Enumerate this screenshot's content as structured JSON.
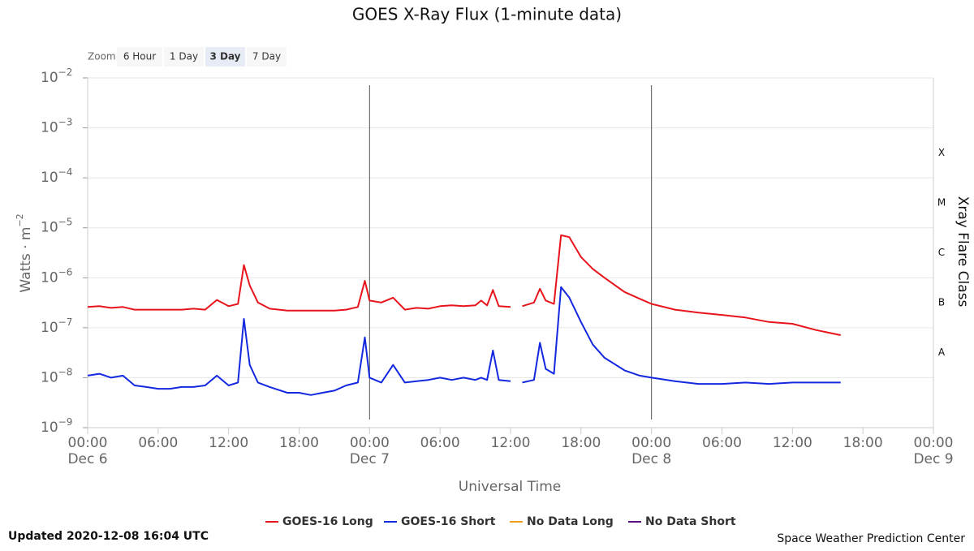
{
  "chart_data": {
    "type": "line",
    "title": "GOES X-Ray Flux (1-minute data)",
    "zoom": {
      "label": "Zoom",
      "buttons": [
        "6 Hour",
        "1 Day",
        "3 Day",
        "7 Day"
      ],
      "selected": "3 Day"
    },
    "xlabel": "Universal Time",
    "ylabel": "Watts · m",
    "ylabel_exponent": "−2",
    "y2label": "Xray Flare Class",
    "log_y": true,
    "grid": true,
    "xlim": [
      0,
      72
    ],
    "xticks": [
      {
        "value": 0,
        "label": "00:00",
        "date": "Dec 6"
      },
      {
        "value": 6,
        "label": "06:00"
      },
      {
        "value": 12,
        "label": "12:00"
      },
      {
        "value": 18,
        "label": "18:00"
      },
      {
        "value": 24,
        "label": "00:00",
        "date": "Dec 7"
      },
      {
        "value": 30,
        "label": "06:00"
      },
      {
        "value": 36,
        "label": "12:00"
      },
      {
        "value": 42,
        "label": "18:00"
      },
      {
        "value": 48,
        "label": "00:00",
        "date": "Dec 8"
      },
      {
        "value": 54,
        "label": "06:00"
      },
      {
        "value": 60,
        "label": "12:00"
      },
      {
        "value": 66,
        "label": "18:00"
      },
      {
        "value": 72,
        "label": "00:00",
        "date": "Dec 9"
      }
    ],
    "ylim": [
      1e-09,
      0.01
    ],
    "yticks": [
      {
        "value": 1e-09,
        "label": "10",
        "exponent": "−9"
      },
      {
        "value": 1e-08,
        "label": "10",
        "exponent": "−8"
      },
      {
        "value": 1e-07,
        "label": "10",
        "exponent": "−7"
      },
      {
        "value": 1e-06,
        "label": "10",
        "exponent": "−6"
      },
      {
        "value": 1e-05,
        "label": "10",
        "exponent": "−5"
      },
      {
        "value": 0.0001,
        "label": "10",
        "exponent": "−4"
      },
      {
        "value": 0.001,
        "label": "10",
        "exponent": "−3"
      },
      {
        "value": 0.01,
        "label": "10",
        "exponent": "−2"
      }
    ],
    "flare_classes": [
      {
        "label": "A",
        "range": [
          1e-08,
          1e-07
        ]
      },
      {
        "label": "B",
        "range": [
          1e-07,
          1e-06
        ]
      },
      {
        "label": "C",
        "range": [
          1e-06,
          1e-05
        ]
      },
      {
        "label": "M",
        "range": [
          1e-05,
          0.0001
        ]
      },
      {
        "label": "X",
        "range": [
          0.0001,
          0.001
        ]
      }
    ],
    "plot_lines": [
      24,
      48
    ],
    "x": [
      0,
      1,
      2,
      3,
      4,
      5,
      6,
      7,
      8,
      9,
      10,
      11,
      12,
      12.8,
      13.3,
      13.8,
      14.5,
      15.5,
      17,
      18,
      19,
      20,
      21,
      22,
      23,
      23.6,
      24,
      25,
      26,
      27,
      28,
      29,
      30,
      31,
      32,
      33,
      33.5,
      34,
      34.5,
      35,
      36,
      36.5,
      37,
      38,
      38.5,
      39,
      39.7,
      40.3,
      41,
      42,
      43,
      44,
      45.7,
      47,
      48,
      50,
      52,
      54,
      56,
      58,
      60,
      62,
      64.1
    ],
    "series": [
      {
        "name": "GOES-16 Long",
        "color": "#e8141c",
        "values": [
          2.6e-07,
          2.7e-07,
          2.5e-07,
          2.6e-07,
          2.3e-07,
          2.3e-07,
          2.3e-07,
          2.3e-07,
          2.3e-07,
          2.4e-07,
          2.3e-07,
          3.6e-07,
          2.7e-07,
          3e-07,
          1.8e-06,
          7e-07,
          3.2e-07,
          2.4e-07,
          2.2e-07,
          2.2e-07,
          2.2e-07,
          2.2e-07,
          2.2e-07,
          2.3e-07,
          2.6e-07,
          8.7e-07,
          3.5e-07,
          3.2e-07,
          4e-07,
          2.3e-07,
          2.5e-07,
          2.4e-07,
          2.7e-07,
          2.8e-07,
          2.7e-07,
          2.8e-07,
          3.5e-07,
          2.8e-07,
          5.7e-07,
          2.7e-07,
          2.6e-07,
          null,
          2.7e-07,
          3.2e-07,
          6e-07,
          3.5e-07,
          3e-07,
          7.1e-06,
          6.5e-06,
          2.6e-06,
          1.5e-06,
          1e-06,
          5.2e-07,
          3.8e-07,
          3e-07,
          2.3e-07,
          2e-07,
          1.8e-07,
          1.6e-07,
          1.3e-07,
          1.2e-07,
          9e-08,
          7.1e-08
        ]
      },
      {
        "name": "GOES-16 Short",
        "color": "#1428e0",
        "values": [
          1.1e-08,
          1.2e-08,
          1e-08,
          1.1e-08,
          7e-09,
          6.5e-09,
          6e-09,
          6e-09,
          6.5e-09,
          6.5e-09,
          7e-09,
          1.1e-08,
          7e-09,
          8e-09,
          1.5e-07,
          1.8e-08,
          8e-09,
          6.5e-09,
          5e-09,
          5e-09,
          4.5e-09,
          5e-09,
          5.5e-09,
          7e-09,
          8e-09,
          6.4e-08,
          1e-08,
          8e-09,
          1.8e-08,
          8e-09,
          8.5e-09,
          9e-09,
          1e-08,
          9e-09,
          1e-08,
          9e-09,
          1e-08,
          9e-09,
          3.5e-08,
          9e-09,
          8.5e-09,
          null,
          8e-09,
          9e-09,
          5e-08,
          1.5e-08,
          1.2e-08,
          6.5e-07,
          4e-07,
          1.3e-07,
          4.6e-08,
          2.5e-08,
          1.4e-08,
          1.1e-08,
          1e-08,
          8.5e-09,
          7.5e-09,
          7.5e-09,
          8e-09,
          7.5e-09,
          8e-09,
          8e-09,
          8e-09
        ]
      }
    ],
    "legend_extra": [
      {
        "name": "No Data Long",
        "color": "#f0a020"
      },
      {
        "name": "No Data Short",
        "color": "#5a1080"
      }
    ],
    "footer_left": "Updated 2020-12-08 16:04 UTC",
    "footer_right": "Space Weather Prediction Center"
  }
}
